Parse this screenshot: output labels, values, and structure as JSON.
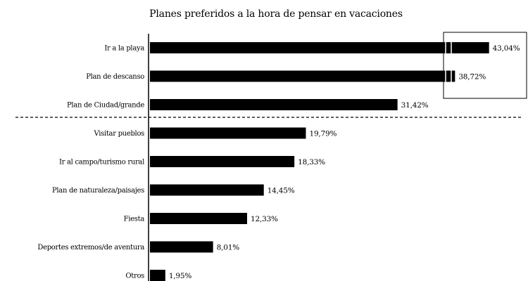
{
  "chart_data": {
    "type": "bar",
    "horizontal": true,
    "title": "Planes preferidos a la hora de pensar en vacaciones",
    "categories": [
      "Ir a la playa",
      "Plan de descanso",
      "Plan de Ciudad/grande",
      "Visitar pueblos",
      "Ir al campo/turismo rural",
      "Plan de naturaleza/paisajes",
      "Fiesta",
      "Deportes extremos/de aventura",
      "Otros"
    ],
    "values": [
      43.04,
      38.72,
      31.42,
      19.79,
      18.33,
      14.45,
      12.33,
      8.01,
      1.95
    ],
    "value_labels": [
      "43,04%",
      "38,72%",
      "31,42%",
      "19,79%",
      "18,33%",
      "14,45%",
      "12,33%",
      "8,01%",
      "1,95%"
    ],
    "xlim": [
      0,
      47
    ],
    "grid": false,
    "bar_color": "#000000"
  }
}
